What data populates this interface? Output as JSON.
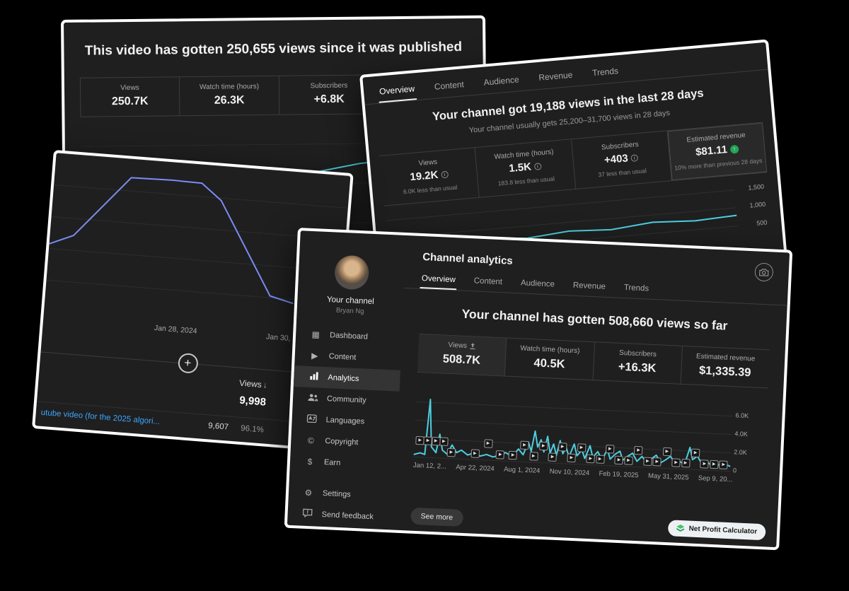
{
  "colors": {
    "background": "#000000",
    "card_bg": "#1f1f1f",
    "accent_link_blue": "#3ea6ff",
    "chart_teal": "#4ccfe0",
    "chart_purple": "#7a8cf5",
    "positive_green": "#23a455"
  },
  "cards": {
    "video": {
      "headline": "This video has gotten 250,655 views since it was published",
      "metrics": [
        {
          "label": "Views",
          "value": "250.7K"
        },
        {
          "label": "Watch time (hours)",
          "value": "26.3K"
        },
        {
          "label": "Subscribers",
          "value": "+6.8K"
        }
      ],
      "chart_data": {
        "type": "line",
        "ymax": 100,
        "color": "#4ccfe0",
        "series": [
          {
            "name": "Views",
            "points": [
              [
                0,
                55
              ],
              [
                15,
                62
              ],
              [
                30,
                70
              ],
              [
                45,
                80
              ],
              [
                58,
                88
              ],
              [
                72,
                92
              ],
              [
                100,
                96
              ]
            ]
          }
        ]
      }
    },
    "month": {
      "tabs": [
        "Overview",
        "Content",
        "Audience",
        "Revenue",
        "Trends"
      ],
      "active_tab": "Overview",
      "headline": "Your channel got 19,188 views in the last 28 days",
      "subtitle": "Your channel usually gets 25,200–31,700 views in 28 days",
      "metrics": [
        {
          "label": "Views",
          "value": "19.2K",
          "note": "6.0K less than usual"
        },
        {
          "label": "Watch time (hours)",
          "value": "1.5K",
          "note": "183.8 less than usual"
        },
        {
          "label": "Subscribers",
          "value": "+403",
          "note": "37 less than usual"
        },
        {
          "label": "Estimated revenue",
          "value": "$81.11",
          "note": "10% more than previous 28 days"
        }
      ],
      "chart_data": {
        "type": "line",
        "y_tick_labels": [
          "1,500",
          "1,000",
          "500"
        ],
        "ymax": 1650,
        "color": "#4ccfe0",
        "series": [
          {
            "name": "Views",
            "points": [
              [
                0,
                640
              ],
              [
                10,
                720
              ],
              [
                20,
                650
              ],
              [
                30,
                770
              ],
              [
                40,
                700
              ],
              [
                52,
                790
              ],
              [
                64,
                730
              ],
              [
                76,
                830
              ],
              [
                88,
                770
              ],
              [
                100,
                820
              ]
            ]
          }
        ]
      }
    },
    "video_detail": {
      "x_labels": [
        "Jan 28, 2024",
        "Jan 30, 2..."
      ],
      "views_header": "Views",
      "sort_arrow": "↓",
      "total_views": "9,998",
      "video_title": "utube video (for the 2025 algori...",
      "video_views": "9,607",
      "video_pct": "96.1%",
      "zoom_glyph": "+",
      "chart_data": {
        "type": "line",
        "ymax": 11000,
        "color": "#7a8cf5",
        "series": [
          {
            "name": "Views",
            "points": [
              [
                0,
                4700
              ],
              [
                8,
                5400
              ],
              [
                26,
                9700
              ],
              [
                40,
                9750
              ],
              [
                50,
                9700
              ],
              [
                57,
                8600
              ],
              [
                76,
                2300
              ],
              [
                84,
                1900
              ]
            ]
          }
        ]
      }
    },
    "channel": {
      "channel_name": "Your channel",
      "owner_name": "Bryan Ng",
      "sidebar": [
        "Dashboard",
        "Content",
        "Analytics",
        "Community",
        "Languages",
        "Copyright",
        "Earn",
        "Settings",
        "Send feedback"
      ],
      "active_item": "Analytics",
      "title": "Channel analytics",
      "tabs": [
        "Overview",
        "Content",
        "Audience",
        "Revenue",
        "Trends"
      ],
      "active_tab": "Overview",
      "headline": "Your channel has gotten 508,660 views so far",
      "metrics": [
        {
          "label": "Views",
          "value": "508.7K"
        },
        {
          "label": "Watch time (hours)",
          "value": "40.5K"
        },
        {
          "label": "Subscribers",
          "value": "+16.3K"
        },
        {
          "label": "Estimated revenue",
          "value": "$1,335.39"
        }
      ],
      "see_more_label": "See more",
      "net_profit_label": "Net Profit Calculator",
      "chart_data": {
        "type": "line",
        "y_tick_labels": [
          "6.0K",
          "4.0K",
          "2.0K",
          "0"
        ],
        "x_tick_labels": [
          "Jan 12, 2...",
          "Apr 22, 2024",
          "Aug 1, 2024",
          "Nov 10, 2024",
          "Feb 19, 2025",
          "May 31, 2025",
          "Sep 9, 20..."
        ],
        "ymax": 7000,
        "color": "#4ccfe0",
        "series": [
          {
            "name": "Views",
            "points": [
              [
                0,
                300
              ],
              [
                2,
                500
              ],
              [
                3.5,
                350
              ],
              [
                4.5,
                6300
              ],
              [
                5.5,
                1200
              ],
              [
                7,
                600
              ],
              [
                8,
                2600
              ],
              [
                9,
                900
              ],
              [
                10.5,
                500
              ],
              [
                12,
                1500
              ],
              [
                13.5,
                700
              ],
              [
                15,
                1000
              ],
              [
                17,
                500
              ],
              [
                19,
                750
              ],
              [
                21,
                450
              ],
              [
                23,
                650
              ],
              [
                25,
                420
              ],
              [
                27,
                600
              ],
              [
                29,
                950
              ],
              [
                31,
                550
              ],
              [
                33,
                1400
              ],
              [
                34.5,
                800
              ],
              [
                36,
                2200
              ],
              [
                37,
                1200
              ],
              [
                38,
                3400
              ],
              [
                39,
                1700
              ],
              [
                40,
                2500
              ],
              [
                41,
                1200
              ],
              [
                42,
                2900
              ],
              [
                43,
                1100
              ],
              [
                44,
                2100
              ],
              [
                45,
                900
              ],
              [
                46,
                2500
              ],
              [
                47,
                1100
              ],
              [
                48,
                1800
              ],
              [
                49,
                800
              ],
              [
                50.5,
                2200
              ],
              [
                51.5,
                950
              ],
              [
                53,
                1600
              ],
              [
                54,
                700
              ],
              [
                55.5,
                2100
              ],
              [
                56.5,
                850
              ],
              [
                58,
                1500
              ],
              [
                59.5,
                650
              ],
              [
                61,
                1800
              ],
              [
                62,
                750
              ],
              [
                63.5,
                1300
              ],
              [
                65,
                1650
              ],
              [
                66,
                700
              ],
              [
                67.5,
                1150
              ],
              [
                69,
                1500
              ],
              [
                70.5,
                650
              ],
              [
                72,
                1200
              ],
              [
                73.5,
                550
              ],
              [
                75,
                1000
              ],
              [
                76.5,
                1400
              ],
              [
                78,
                600
              ],
              [
                79.5,
                950
              ],
              [
                81,
                1350
              ],
              [
                82.5,
                600
              ],
              [
                84,
                850
              ],
              [
                85.5,
                500
              ],
              [
                87,
                2400
              ],
              [
                88,
                1100
              ],
              [
                89.5,
                1500
              ],
              [
                91,
                650
              ],
              [
                92.5,
                1000
              ],
              [
                94,
                550
              ],
              [
                95.5,
                900
              ],
              [
                97,
                450
              ],
              [
                98.5,
                750
              ],
              [
                100,
                550
              ]
            ]
          }
        ]
      },
      "video_markers": [
        [
          0.5,
          0
        ],
        [
          3,
          0
        ],
        [
          5.5,
          0
        ],
        [
          8,
          0
        ],
        [
          10.5,
          1
        ],
        [
          18,
          1
        ],
        [
          22,
          0
        ],
        [
          26,
          1
        ],
        [
          30,
          1
        ],
        [
          33.5,
          0
        ],
        [
          36.5,
          1
        ],
        [
          39.5,
          0
        ],
        [
          42.5,
          1
        ],
        [
          45.5,
          0
        ],
        [
          48.5,
          1
        ],
        [
          51.5,
          0
        ],
        [
          54.5,
          1
        ],
        [
          57.5,
          1
        ],
        [
          60.5,
          0
        ],
        [
          63.5,
          1
        ],
        [
          66.5,
          1
        ],
        [
          69.5,
          0
        ],
        [
          72.5,
          1
        ],
        [
          75.5,
          1
        ],
        [
          78.5,
          0
        ],
        [
          81.5,
          1
        ],
        [
          84.5,
          1
        ],
        [
          87.5,
          0
        ],
        [
          90.5,
          1
        ],
        [
          93.5,
          1
        ],
        [
          96.5,
          1
        ]
      ]
    }
  }
}
